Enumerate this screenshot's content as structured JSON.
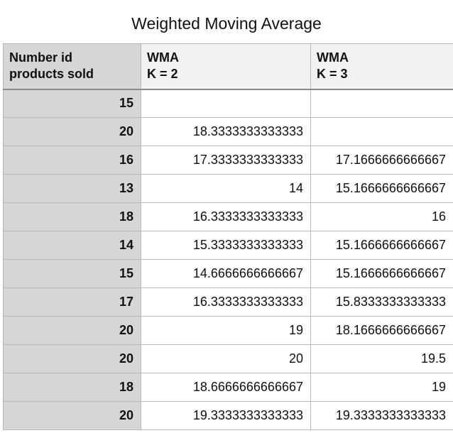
{
  "title": "Weighted Moving Average",
  "table": {
    "headers": [
      [
        "Number id",
        "products sold"
      ],
      [
        "WMA",
        "K = 2"
      ],
      [
        "WMA",
        "K = 3"
      ]
    ],
    "rows": [
      [
        "15",
        "",
        ""
      ],
      [
        "20",
        "18.3333333333333",
        ""
      ],
      [
        "16",
        "17.3333333333333",
        "17.1666666666667"
      ],
      [
        "13",
        "14",
        "15.1666666666667"
      ],
      [
        "18",
        "16.3333333333333",
        "16"
      ],
      [
        "14",
        "15.3333333333333",
        "15.1666666666667"
      ],
      [
        "15",
        "14.6666666666667",
        "15.1666666666667"
      ],
      [
        "17",
        "16.3333333333333",
        "15.8333333333333"
      ],
      [
        "20",
        "19",
        "18.1666666666667"
      ],
      [
        "20",
        "20",
        "19.5"
      ],
      [
        "18",
        "18.6666666666667",
        "19"
      ],
      [
        "20",
        "19.3333333333333",
        "19.3333333333333"
      ]
    ]
  }
}
